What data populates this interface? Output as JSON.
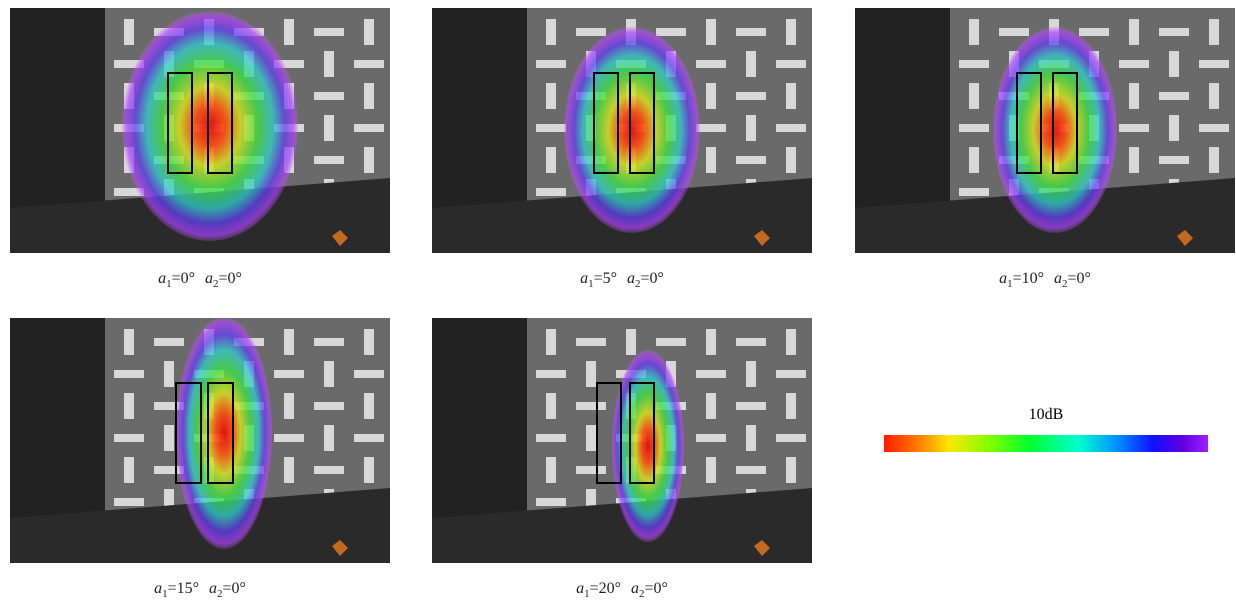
{
  "panels": [
    {
      "a1": {
        "symbol": "a",
        "subscript": "1",
        "value": "=0°"
      },
      "a2": {
        "symbol": "a",
        "subscript": "2",
        "value": "=0°"
      }
    },
    {
      "a1": {
        "symbol": "a",
        "subscript": "1",
        "value": "=5°"
      },
      "a2": {
        "symbol": "a",
        "subscript": "2",
        "value": "=0°"
      }
    },
    {
      "a1": {
        "symbol": "a",
        "subscript": "1",
        "value": "=10°"
      },
      "a2": {
        "symbol": "a",
        "subscript": "2",
        "value": "=0°"
      }
    },
    {
      "a1": {
        "symbol": "a",
        "subscript": "1",
        "value": "=15°"
      },
      "a2": {
        "symbol": "a",
        "subscript": "2",
        "value": "=0°"
      }
    },
    {
      "a1": {
        "symbol": "a",
        "subscript": "1",
        "value": "=20°"
      },
      "a2": {
        "symbol": "a",
        "subscript": "2",
        "value": "=0°"
      }
    }
  ],
  "colorbar": {
    "label": "10dB"
  }
}
